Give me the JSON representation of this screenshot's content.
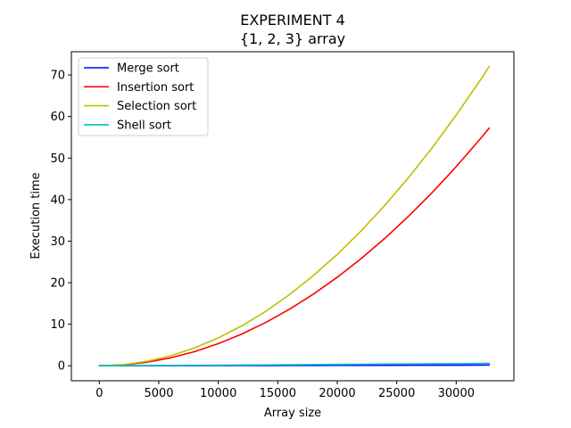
{
  "chart_data": {
    "type": "line",
    "title": "EXPERIMENT 4",
    "subtitle": "{1, 2, 3} array",
    "xlabel": "Array size",
    "ylabel": "Execution time",
    "xlim": [
      -2350,
      34850
    ],
    "ylim": [
      -3.6,
      75.6
    ],
    "xticks": [
      0,
      5000,
      10000,
      15000,
      20000,
      25000,
      30000
    ],
    "yticks": [
      0,
      10,
      20,
      30,
      40,
      50,
      60,
      70
    ],
    "legend_position": "top-left",
    "grid": false,
    "series": [
      {
        "name": "Merge sort",
        "color": "#0000ff",
        "x": [
          0,
          2000,
          4000,
          6000,
          8000,
          10000,
          12000,
          14000,
          16000,
          18000,
          20000,
          22000,
          24000,
          26000,
          28000,
          30000,
          32000,
          32768
        ],
        "y": [
          0.0,
          0.01,
          0.02,
          0.03,
          0.04,
          0.05,
          0.06,
          0.07,
          0.08,
          0.09,
          0.1,
          0.11,
          0.12,
          0.13,
          0.14,
          0.15,
          0.17,
          0.18
        ]
      },
      {
        "name": "Insertion sort",
        "color": "#ff0000",
        "x": [
          0,
          2000,
          4000,
          6000,
          8000,
          10000,
          12000,
          14000,
          16000,
          18000,
          20000,
          22000,
          24000,
          26000,
          28000,
          30000,
          32000,
          32768
        ],
        "y": [
          0.0,
          0.21,
          0.85,
          1.92,
          3.41,
          5.33,
          7.67,
          10.44,
          13.64,
          17.26,
          21.31,
          25.78,
          30.68,
          36.01,
          41.76,
          47.94,
          54.54,
          57.2
        ]
      },
      {
        "name": "Selection sort",
        "color": "#bfbf00",
        "x": [
          0,
          2000,
          4000,
          6000,
          8000,
          10000,
          12000,
          14000,
          16000,
          18000,
          20000,
          22000,
          24000,
          26000,
          28000,
          30000,
          32000,
          32768
        ],
        "y": [
          0.0,
          0.27,
          1.07,
          2.41,
          4.29,
          6.71,
          9.65,
          13.14,
          17.16,
          21.72,
          26.82,
          32.45,
          38.62,
          45.32,
          52.56,
          60.34,
          68.65,
          72.0
        ]
      },
      {
        "name": "Shell sort",
        "color": "#00bfbf",
        "x": [
          0,
          2000,
          4000,
          6000,
          8000,
          10000,
          12000,
          14000,
          16000,
          18000,
          20000,
          22000,
          24000,
          26000,
          28000,
          30000,
          32000,
          32768
        ],
        "y": [
          0.0,
          0.02,
          0.05,
          0.08,
          0.11,
          0.14,
          0.18,
          0.21,
          0.25,
          0.29,
          0.33,
          0.37,
          0.41,
          0.45,
          0.49,
          0.53,
          0.58,
          0.6
        ]
      }
    ]
  }
}
